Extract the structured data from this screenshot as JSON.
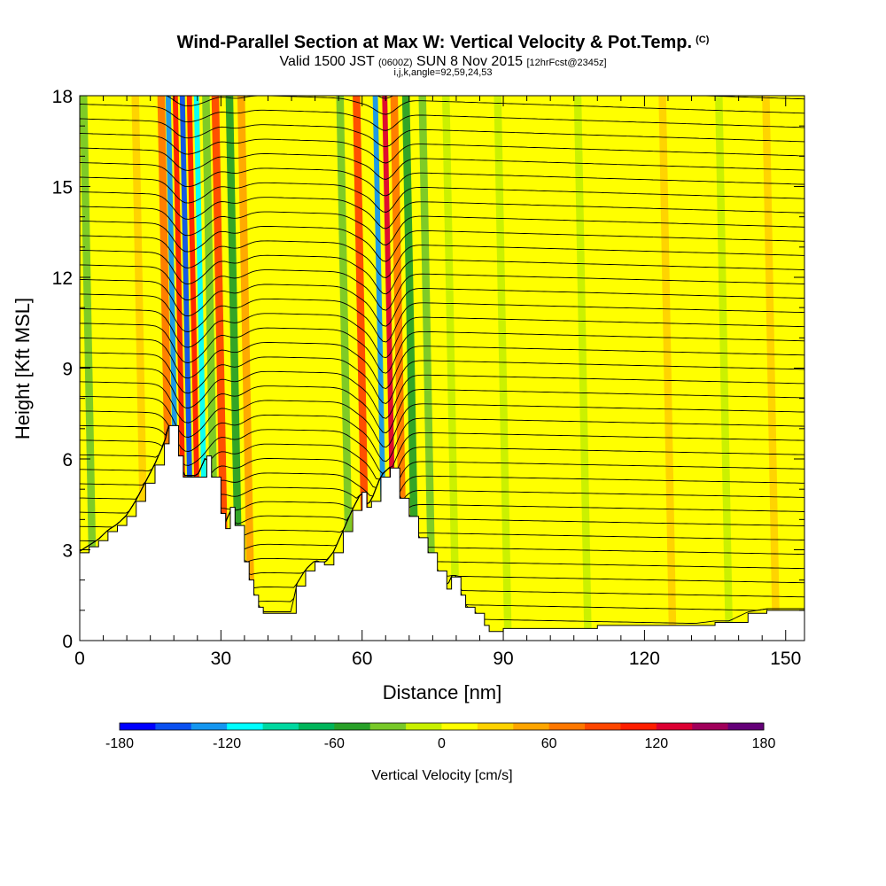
{
  "titles": {
    "main": "Wind-Parallel Section at Max W: Vertical Velocity & Pot.Temp.",
    "copyright_mark": "(C)",
    "valid_prefix": "Valid 1500 JST",
    "valid_utc": "(0600Z)",
    "valid_date": "SUN 8 Nov 2015",
    "forecast_info": "[12hrFcst@2345z]",
    "indices": "i,j,k,angle=92,59,24,53"
  },
  "chart_data": {
    "type": "heatmap",
    "title": "Wind-Parallel Section at Max W: Vertical Velocity & Pot.Temp.",
    "xlabel": "Distance [nm]",
    "ylabel": "Height [Kft MSL]",
    "xlim": [
      0,
      154
    ],
    "ylim": [
      0,
      18
    ],
    "x_ticks": [
      0,
      30,
      60,
      90,
      120,
      150
    ],
    "y_ticks": [
      0,
      3,
      6,
      9,
      12,
      15,
      18
    ],
    "terrain": {
      "x": [
        0,
        2,
        4,
        6,
        8,
        10,
        12,
        14,
        16,
        18,
        19,
        21,
        22,
        25,
        27,
        28,
        30,
        31,
        32,
        33,
        35,
        36,
        37,
        38,
        39,
        45,
        46,
        48,
        50,
        52,
        54,
        56,
        58,
        60,
        61,
        62,
        64,
        66,
        68,
        70,
        72,
        74,
        76,
        78,
        79,
        80,
        81,
        82,
        84,
        86,
        87,
        88,
        90,
        94,
        100,
        110,
        120,
        130,
        135,
        138,
        142,
        146,
        150,
        154
      ],
      "y": [
        2.9,
        3.1,
        3.3,
        3.6,
        3.8,
        4.1,
        4.6,
        5.2,
        5.8,
        6.5,
        7.1,
        6.1,
        5.4,
        5.4,
        6.1,
        5.4,
        4.2,
        3.7,
        4.4,
        3.8,
        2.6,
        2.0,
        1.5,
        1.1,
        0.9,
        0.9,
        1.8,
        2.3,
        2.6,
        2.5,
        2.9,
        3.6,
        4.3,
        4.9,
        4.4,
        4.6,
        5.4,
        5.7,
        4.7,
        4.1,
        3.4,
        2.9,
        2.3,
        1.7,
        2.1,
        2.1,
        1.5,
        1.1,
        0.9,
        0.5,
        0.3,
        0.3,
        0.4,
        0.4,
        0.4,
        0.5,
        0.5,
        0.5,
        0.6,
        0.6,
        0.9,
        1.0,
        1.0,
        1.0
      ]
    },
    "velocity_bands": [
      {
        "x": 19.5,
        "w": 60
      },
      {
        "x": 21.0,
        "w": -130
      },
      {
        "x": 22.5,
        "w": 110
      },
      {
        "x": 24.0,
        "w": -150
      },
      {
        "x": 25.5,
        "w": 115
      },
      {
        "x": 27.0,
        "w": -120
      },
      {
        "x": 29.0,
        "w": -40
      },
      {
        "x": 31.0,
        "w": 80
      },
      {
        "x": 34.0,
        "w": -60
      },
      {
        "x": 36.5,
        "w": 45
      },
      {
        "x": 57.5,
        "w": -35
      },
      {
        "x": 61.0,
        "w": 85
      },
      {
        "x": 65.0,
        "w": -140
      },
      {
        "x": 67.0,
        "w": 120
      },
      {
        "x": 69.0,
        "w": 60
      },
      {
        "x": 71.5,
        "w": -45
      },
      {
        "x": 75.0,
        "w": -25
      },
      {
        "x": 14.0,
        "w": 30
      },
      {
        "x": 3.0,
        "w": -25
      },
      {
        "x": 80.0,
        "w": -15
      },
      {
        "x": 91.0,
        "w": -15
      },
      {
        "x": 108.0,
        "w": -20
      },
      {
        "x": 126.0,
        "w": 20
      },
      {
        "x": 138.0,
        "w": -20
      },
      {
        "x": 148.0,
        "w": 25
      }
    ],
    "contour_interval_note": "potential temperature isentropes",
    "colorbar": {
      "title": "Vertical Velocity [cm/s]",
      "min": -180,
      "max": 180,
      "labels": [
        -180,
        -120,
        -60,
        0,
        60,
        120,
        180
      ],
      "colors": [
        "#0000ff",
        "#0a50f0",
        "#1496f0",
        "#00ffff",
        "#00d8a0",
        "#00b45a",
        "#28a028",
        "#78c828",
        "#c8f000",
        "#ffff00",
        "#ffd200",
        "#ffa500",
        "#ff7800",
        "#ff4600",
        "#ff1e00",
        "#dc0032",
        "#a0005a",
        "#640078"
      ]
    }
  }
}
